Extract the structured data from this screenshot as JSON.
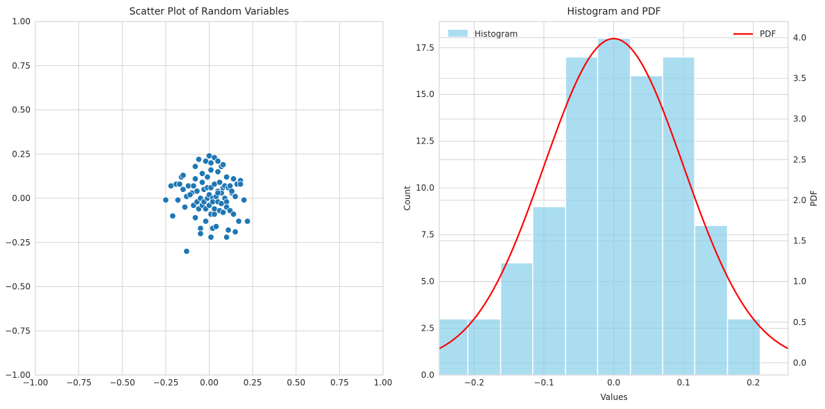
{
  "chart_data": [
    {
      "type": "scatter",
      "title": "Scatter Plot of Random Variables",
      "xlim": [
        -1.0,
        1.0
      ],
      "ylim": [
        -1.0,
        1.0
      ],
      "xticks": [
        "−1.00",
        "−0.75",
        "−0.50",
        "−0.25",
        "0.00",
        "0.25",
        "0.50",
        "0.75",
        "1.00"
      ],
      "yticks": [
        "−1.00",
        "−0.75",
        "−0.50",
        "−0.25",
        "0.00",
        "0.25",
        "0.50",
        "0.75",
        "1.00"
      ],
      "grid": true,
      "color": "#1f77b4",
      "points": [
        [
          -0.25,
          -0.01
        ],
        [
          -0.22,
          0.07
        ],
        [
          -0.21,
          -0.1
        ],
        [
          -0.19,
          0.08
        ],
        [
          -0.18,
          -0.01
        ],
        [
          -0.17,
          0.08
        ],
        [
          -0.16,
          0.12
        ],
        [
          -0.15,
          0.13
        ],
        [
          -0.15,
          0.05
        ],
        [
          -0.14,
          -0.05
        ],
        [
          -0.13,
          -0.3
        ],
        [
          -0.13,
          0.01
        ],
        [
          -0.12,
          0.07
        ],
        [
          -0.1,
          0.03
        ],
        [
          -0.09,
          0.07
        ],
        [
          -0.09,
          -0.04
        ],
        [
          -0.08,
          0.18
        ],
        [
          -0.08,
          0.11
        ],
        [
          -0.08,
          -0.11
        ],
        [
          -0.07,
          0.04
        ],
        [
          -0.07,
          -0.02
        ],
        [
          -0.06,
          0.22
        ],
        [
          -0.06,
          -0.06
        ],
        [
          -0.05,
          -0.17
        ],
        [
          -0.05,
          -0.2
        ],
        [
          -0.05,
          0.0
        ],
        [
          -0.04,
          0.09
        ],
        [
          -0.04,
          -0.04
        ],
        [
          -0.04,
          0.14
        ],
        [
          -0.03,
          0.05
        ],
        [
          -0.03,
          -0.02
        ],
        [
          -0.02,
          0.21
        ],
        [
          -0.02,
          -0.13
        ],
        [
          -0.02,
          -0.06
        ],
        [
          -0.01,
          0.12
        ],
        [
          -0.01,
          0.0
        ],
        [
          -0.01,
          0.06
        ],
        [
          0.0,
          0.24
        ],
        [
          0.0,
          -0.04
        ],
        [
          0.0,
          0.02
        ],
        [
          0.01,
          0.2
        ],
        [
          0.01,
          0.16
        ],
        [
          0.01,
          -0.09
        ],
        [
          0.01,
          -0.22
        ],
        [
          0.01,
          0.06
        ],
        [
          0.02,
          0.0
        ],
        [
          0.02,
          -0.17
        ],
        [
          0.02,
          -0.02
        ],
        [
          0.03,
          0.23
        ],
        [
          0.03,
          0.08
        ],
        [
          0.03,
          -0.09
        ],
        [
          0.03,
          -0.06
        ],
        [
          0.04,
          0.01
        ],
        [
          0.04,
          -0.16
        ],
        [
          0.05,
          0.21
        ],
        [
          0.05,
          0.15
        ],
        [
          0.05,
          -0.02
        ],
        [
          0.05,
          0.04
        ],
        [
          0.06,
          0.09
        ],
        [
          0.06,
          -0.07
        ],
        [
          0.07,
          0.18
        ],
        [
          0.07,
          0.03
        ],
        [
          0.07,
          -0.03
        ],
        [
          0.08,
          0.19
        ],
        [
          0.08,
          0.06
        ],
        [
          0.08,
          -0.08
        ],
        [
          0.09,
          0.0
        ],
        [
          0.09,
          0.07
        ],
        [
          0.1,
          0.12
        ],
        [
          0.1,
          -0.22
        ],
        [
          0.1,
          -0.02
        ],
        [
          0.1,
          -0.05
        ],
        [
          0.11,
          0.06
        ],
        [
          0.11,
          -0.18
        ],
        [
          0.12,
          0.07
        ],
        [
          0.12,
          -0.07
        ],
        [
          0.13,
          0.03
        ],
        [
          0.14,
          0.11
        ],
        [
          0.14,
          -0.09
        ],
        [
          0.15,
          0.01
        ],
        [
          0.15,
          -0.19
        ],
        [
          0.16,
          0.08
        ],
        [
          0.17,
          -0.13
        ],
        [
          0.18,
          0.1
        ],
        [
          0.18,
          0.08
        ],
        [
          0.2,
          -0.01
        ],
        [
          0.22,
          -0.13
        ],
        [
          0.05,
          0.03
        ],
        [
          -0.11,
          0.02
        ],
        [
          0.13,
          0.04
        ]
      ]
    },
    {
      "type": "bar",
      "title": "Histogram and PDF",
      "xlabel": "Values",
      "ylabel": "Count",
      "y2label": "PDF",
      "xlim": [
        -0.25,
        0.25
      ],
      "ylim": [
        0,
        18.9
      ],
      "y2lim": [
        -0.15,
        4.2
      ],
      "xticks": [
        {
          "v": -0.2,
          "label": "−0.2"
        },
        {
          "v": -0.1,
          "label": "−0.1"
        },
        {
          "v": 0.0,
          "label": "0.0"
        },
        {
          "v": 0.1,
          "label": "0.1"
        },
        {
          "v": 0.2,
          "label": "0.2"
        }
      ],
      "yticks": [
        {
          "v": 0,
          "label": "0.0"
        },
        {
          "v": 2.5,
          "label": "2.5"
        },
        {
          "v": 5,
          "label": "5.0"
        },
        {
          "v": 7.5,
          "label": "7.5"
        },
        {
          "v": 10,
          "label": "10.0"
        },
        {
          "v": 12.5,
          "label": "12.5"
        },
        {
          "v": 15,
          "label": "15.0"
        },
        {
          "v": 17.5,
          "label": "17.5"
        }
      ],
      "y2ticks": [
        {
          "v": 0,
          "label": "0.0"
        },
        {
          "v": 0.5,
          "label": "0.5"
        },
        {
          "v": 1.0,
          "label": "1.0"
        },
        {
          "v": 1.5,
          "label": "1.5"
        },
        {
          "v": 2.0,
          "label": "2.0"
        },
        {
          "v": 2.5,
          "label": "2.5"
        },
        {
          "v": 3.0,
          "label": "3.0"
        },
        {
          "v": 3.5,
          "label": "3.5"
        },
        {
          "v": 4.0,
          "label": "4.0"
        }
      ],
      "grid": true,
      "bin_edges": [
        -0.255,
        -0.209,
        -0.162,
        -0.116,
        -0.069,
        -0.023,
        0.024,
        0.07,
        0.116,
        0.163,
        0.21
      ],
      "counts": [
        3,
        3,
        6,
        9,
        17,
        18,
        16,
        17,
        8,
        3
      ],
      "bar_color": "#87ceeb",
      "pdf": {
        "mean": 0.0,
        "std": 0.1,
        "color": "#ff0000"
      },
      "legend": [
        {
          "label": "Histogram",
          "position": "upper-left"
        },
        {
          "label": "PDF",
          "position": "upper-right"
        }
      ]
    }
  ]
}
